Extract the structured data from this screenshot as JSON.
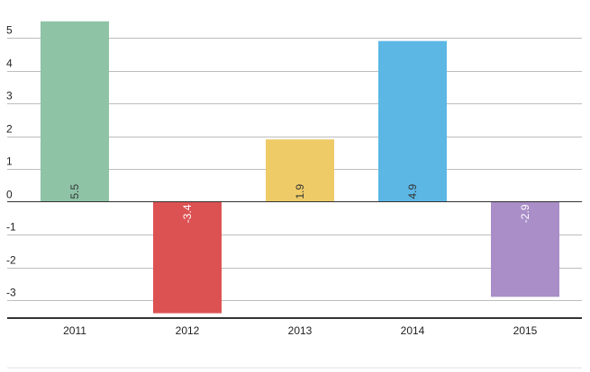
{
  "chart_data": {
    "type": "bar",
    "categories": [
      "2011",
      "2012",
      "2013",
      "2014",
      "2015"
    ],
    "values": [
      5.5,
      -3.4,
      1.9,
      4.9,
      -2.9
    ],
    "value_labels": [
      "5.5",
      "-3.4",
      "1.9",
      "4.9",
      "-2.9"
    ],
    "colors": [
      "#8ec3a6",
      "#dc5253",
      "#eecb67",
      "#5cb7e5",
      "#a98ec7"
    ],
    "label_colors": [
      "#333333",
      "#ffffff",
      "#333333",
      "#333333",
      "#ffffff"
    ],
    "yticks": [
      5,
      4,
      3,
      2,
      1,
      0,
      -1,
      -2,
      -3
    ],
    "ytick_labels": [
      "5",
      "4",
      "3",
      "2",
      "1",
      "0",
      "-1",
      "-2",
      "-3"
    ],
    "ylim": [
      -3.6,
      5.6
    ],
    "grid": true,
    "title": "",
    "xlabel": "",
    "ylabel": ""
  }
}
